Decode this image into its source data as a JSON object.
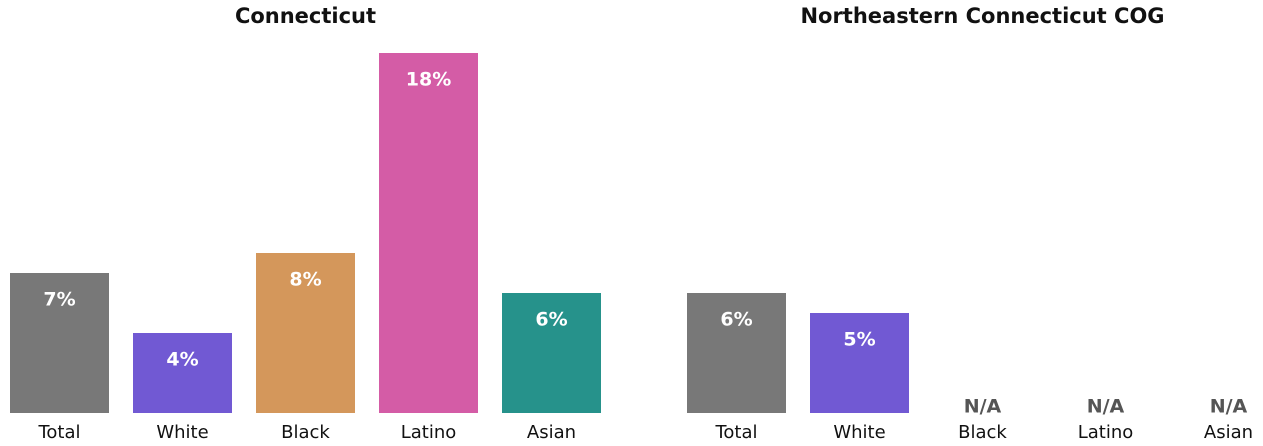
{
  "chart_data": [
    {
      "type": "bar",
      "title": "Connecticut",
      "categories": [
        "Total",
        "White",
        "Black",
        "Latino",
        "Asian"
      ],
      "values": [
        7,
        4,
        8,
        18,
        6
      ],
      "value_labels": [
        "7%",
        "4%",
        "8%",
        "18%",
        "6%"
      ],
      "colors": [
        "#787878",
        "#7159d3",
        "#d4975b",
        "#d45ca6",
        "#26928b"
      ],
      "ylim": [
        0,
        18
      ]
    },
    {
      "type": "bar",
      "title": "Northeastern Connecticut COG",
      "categories": [
        "Total",
        "White",
        "Black",
        "Latino",
        "Asian"
      ],
      "values": [
        6,
        5,
        null,
        null,
        null
      ],
      "value_labels": [
        "6%",
        "5%",
        "N/A",
        "N/A",
        "N/A"
      ],
      "colors": [
        "#787878",
        "#7159d3",
        "#d4975b",
        "#d45ca6",
        "#26928b"
      ],
      "ylim": [
        0,
        18
      ]
    }
  ]
}
